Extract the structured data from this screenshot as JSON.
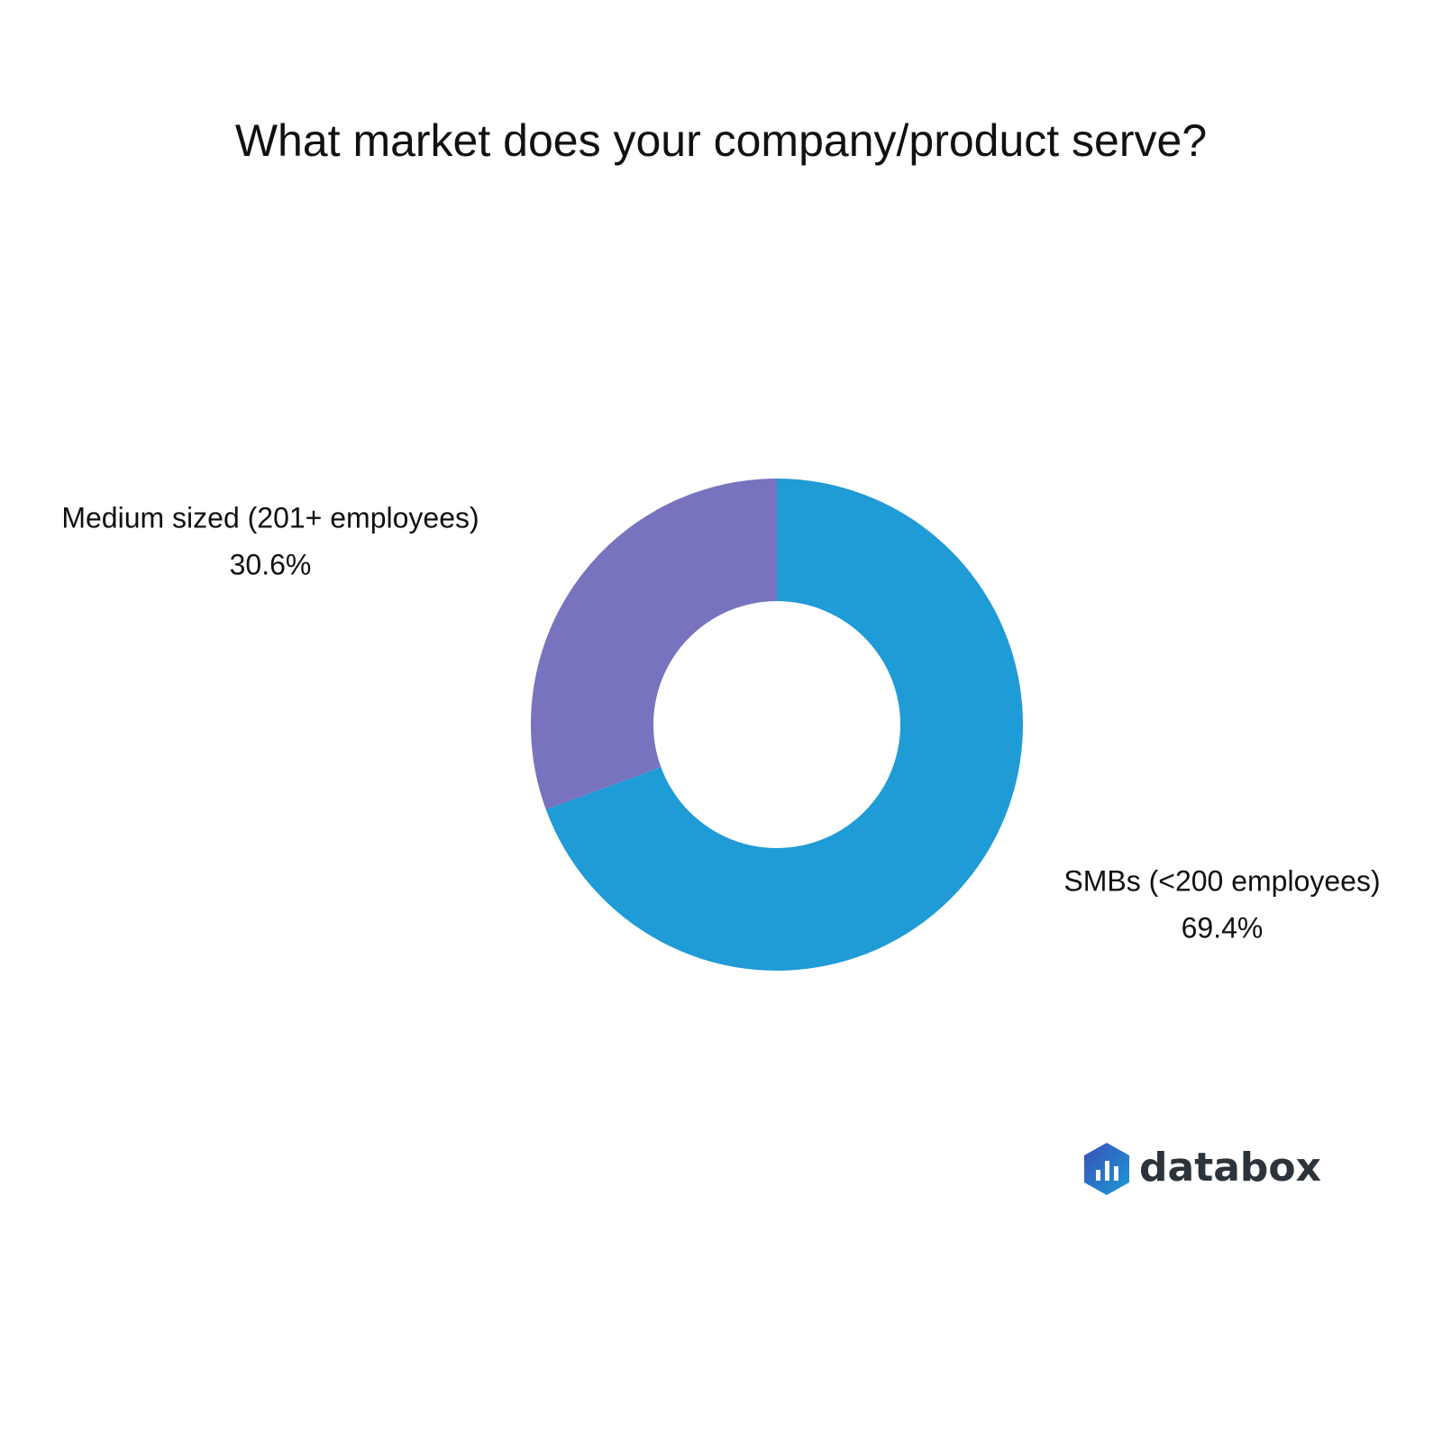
{
  "chart_data": {
    "type": "donut",
    "title": "What market does your company/product serve?",
    "categories": [
      "SMBs (<200 employees)",
      "Medium sized (201+ employees)"
    ],
    "values": [
      69.4,
      30.6
    ],
    "value_labels": [
      "69.4%",
      "30.6%"
    ],
    "colors": [
      "#1f9bd6",
      "#7873be"
    ]
  },
  "brand": "databox"
}
